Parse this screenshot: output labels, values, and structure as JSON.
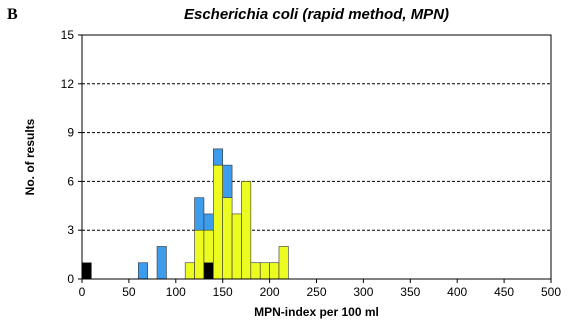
{
  "panel_label": "B",
  "chart_data": {
    "type": "bar",
    "stacked": true,
    "title": "Escherichia coli (rapid method, MPN)",
    "xlabel": "MPN-index per 100 ml",
    "ylabel": "No. of results",
    "xlim": [
      0,
      500
    ],
    "ylim": [
      0,
      15
    ],
    "xticks": [
      0,
      50,
      100,
      150,
      200,
      250,
      300,
      350,
      400,
      450,
      500
    ],
    "yticks": [
      0,
      3,
      6,
      9,
      12,
      15
    ],
    "bin_width": 10,
    "grid": "horizontal-dashed",
    "colors": {
      "black": "#000000",
      "yellow": "#ecfc20",
      "blue": "#3d9cec",
      "outline": "#333333",
      "grid": "#000000"
    },
    "bars": [
      {
        "x0": 0,
        "segments": [
          {
            "color": "black",
            "count": 1
          }
        ]
      },
      {
        "x0": 60,
        "segments": [
          {
            "color": "blue",
            "count": 1
          }
        ]
      },
      {
        "x0": 80,
        "segments": [
          {
            "color": "blue",
            "count": 2
          }
        ]
      },
      {
        "x0": 110,
        "segments": [
          {
            "color": "yellow",
            "count": 1
          }
        ]
      },
      {
        "x0": 120,
        "segments": [
          {
            "color": "yellow",
            "count": 3
          },
          {
            "color": "blue",
            "count": 2
          }
        ]
      },
      {
        "x0": 130,
        "segments": [
          {
            "color": "black",
            "count": 1
          },
          {
            "color": "yellow",
            "count": 2
          },
          {
            "color": "blue",
            "count": 1
          }
        ]
      },
      {
        "x0": 140,
        "segments": [
          {
            "color": "yellow",
            "count": 7
          },
          {
            "color": "blue",
            "count": 1
          }
        ]
      },
      {
        "x0": 150,
        "segments": [
          {
            "color": "yellow",
            "count": 5
          },
          {
            "color": "blue",
            "count": 2
          }
        ]
      },
      {
        "x0": 160,
        "segments": [
          {
            "color": "yellow",
            "count": 4
          }
        ]
      },
      {
        "x0": 170,
        "segments": [
          {
            "color": "yellow",
            "count": 6
          }
        ]
      },
      {
        "x0": 180,
        "segments": [
          {
            "color": "yellow",
            "count": 1
          }
        ]
      },
      {
        "x0": 190,
        "segments": [
          {
            "color": "yellow",
            "count": 1
          }
        ]
      },
      {
        "x0": 200,
        "segments": [
          {
            "color": "yellow",
            "count": 1
          }
        ]
      },
      {
        "x0": 210,
        "segments": [
          {
            "color": "yellow",
            "count": 2
          }
        ]
      }
    ]
  }
}
